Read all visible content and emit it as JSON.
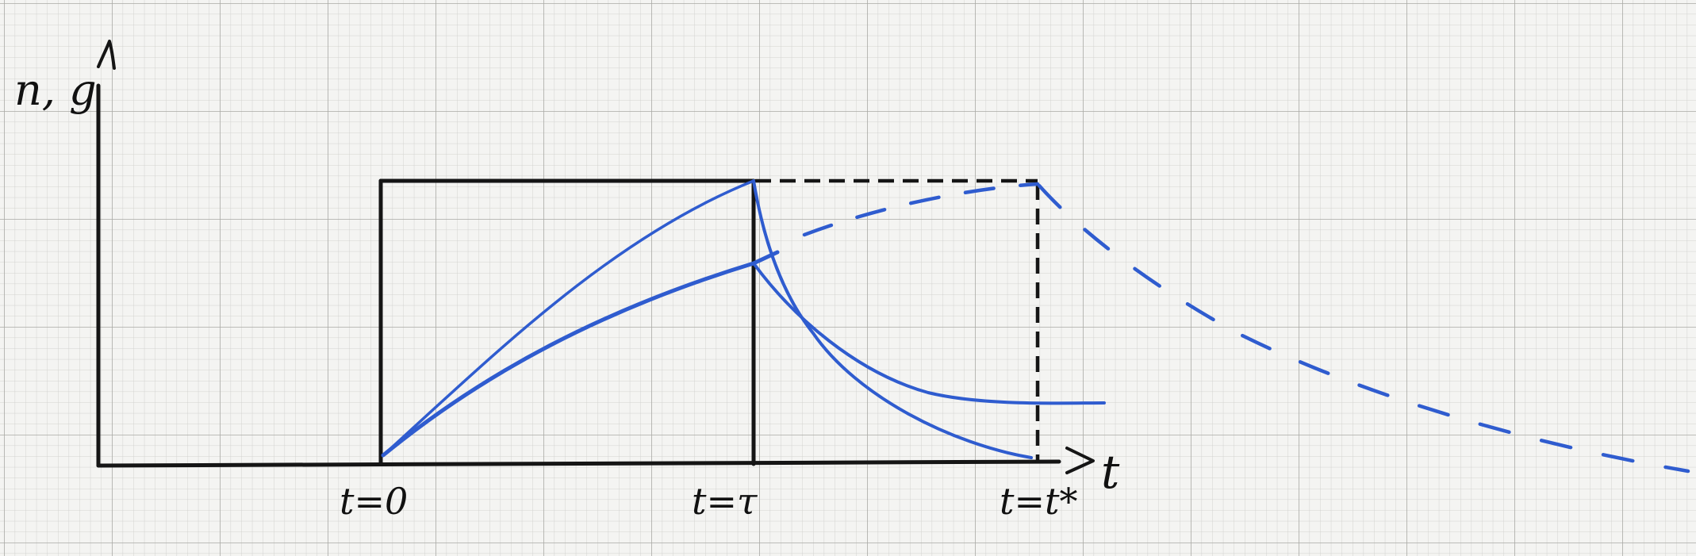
{
  "diagram": {
    "axis_labels": {
      "y": "n, g",
      "x": "t"
    },
    "tick_labels": {
      "t0": "t=0",
      "tau": "t=τ",
      "tstar": "t=t*"
    },
    "colors": {
      "paper": "#f4f4f2",
      "grid_minor": "#d2d2cf",
      "grid_major": "#a9a9a5",
      "axes_ink": "#151515",
      "curve_ink": "#2f5ccf"
    }
  }
}
